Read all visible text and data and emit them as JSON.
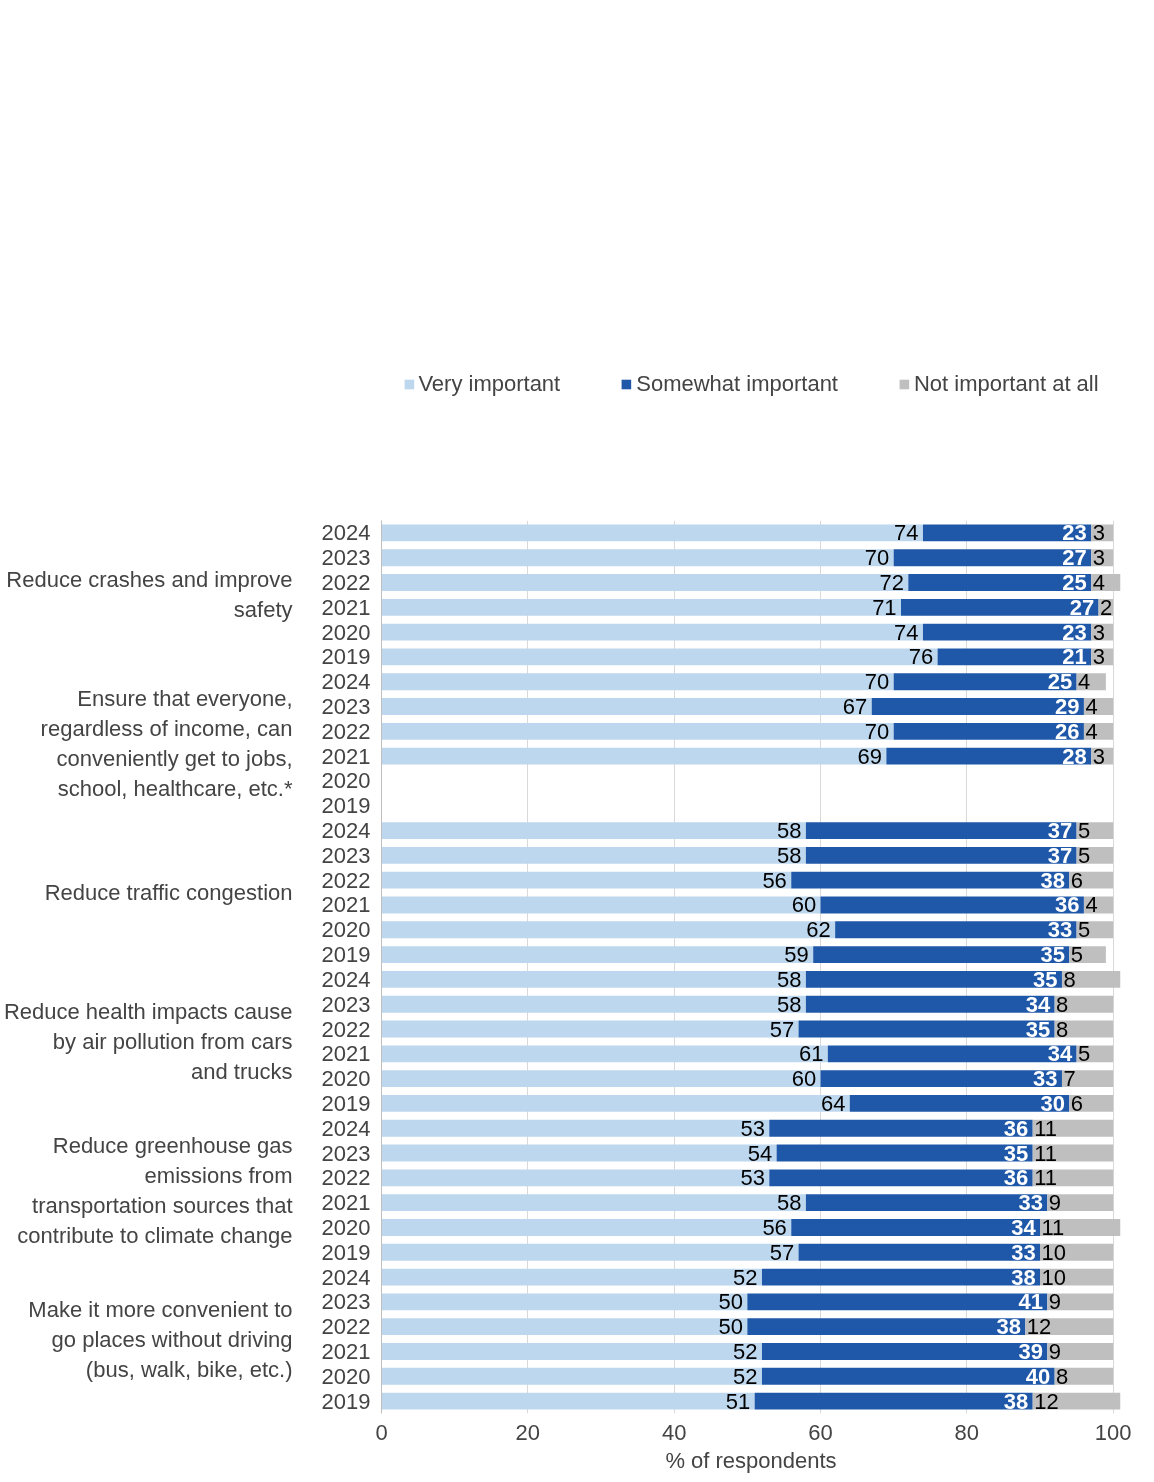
{
  "chart_data": {
    "type": "bar",
    "orientation": "horizontal",
    "stacked": true,
    "xlabel": "% of respondents",
    "legend": "top",
    "grid": "x",
    "data_labels": true,
    "xlim": [
      0,
      101
    ],
    "xticks": [
      0,
      20,
      40,
      60,
      80,
      100
    ],
    "annotations": [
      "Reduce crashes and improve safety",
      "Ensure that everyone, regardless of income, can conveniently get to jobs, school, healthcare, etc.*",
      "Reduce traffic congestion",
      "Reduce health impacts cause by air pollution from cars and trucks",
      "Reduce greenhouse gas emissions from transportation sources that contribute to climate change",
      "Make it more convenient to go places without driving (bus, walk, bike, etc.)"
    ],
    "categories": [
      "2024",
      "2023",
      "2022",
      "2021",
      "2020",
      "2019",
      "2024",
      "2023",
      "2022",
      "2021",
      "2020",
      "2019",
      "2024",
      "2023",
      "2022",
      "2021",
      "2020",
      "2019",
      "2024",
      "2023",
      "2022",
      "2021",
      "2020",
      "2019",
      "2024",
      "2023",
      "2022",
      "2021",
      "2020",
      "2019",
      "2024",
      "2023",
      "2022",
      "2021",
      "2020",
      "2019"
    ],
    "series": [
      {
        "name": "Very important",
        "color": "#bdd7ee",
        "values": [
          74,
          70,
          72,
          71,
          74,
          76,
          70,
          67,
          70,
          69,
          null,
          null,
          58,
          58,
          56,
          60,
          62,
          59,
          58,
          58,
          57,
          61,
          60,
          64,
          53,
          54,
          53,
          58,
          56,
          57,
          52,
          50,
          50,
          52,
          52,
          51
        ]
      },
      {
        "name": "Somewhat important",
        "color": "#1f58a8",
        "values": [
          23,
          27,
          25,
          27,
          23,
          21,
          25,
          29,
          26,
          28,
          null,
          null,
          37,
          37,
          38,
          36,
          33,
          35,
          35,
          34,
          35,
          34,
          33,
          30,
          36,
          35,
          36,
          33,
          34,
          33,
          38,
          41,
          38,
          39,
          40,
          38
        ]
      },
      {
        "name": "Not important at all",
        "color": "#bfbfbf",
        "values": [
          3,
          3,
          4,
          2,
          3,
          3,
          4,
          4,
          4,
          3,
          null,
          null,
          5,
          5,
          6,
          4,
          5,
          5,
          8,
          8,
          8,
          5,
          7,
          6,
          11,
          11,
          11,
          9,
          11,
          10,
          10,
          9,
          12,
          9,
          8,
          12
        ]
      }
    ]
  }
}
